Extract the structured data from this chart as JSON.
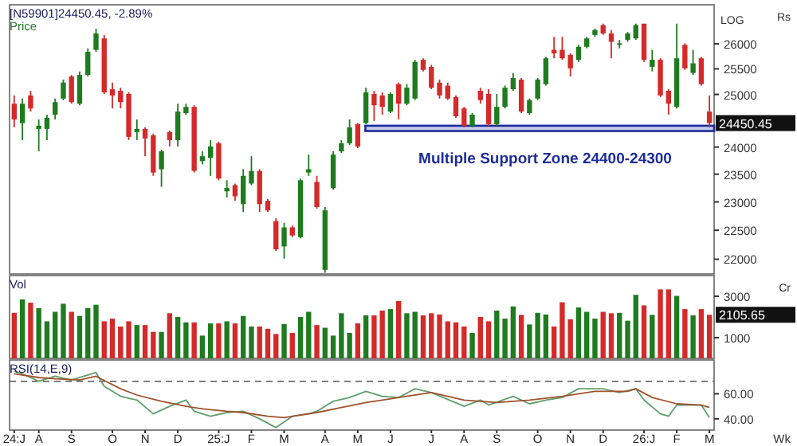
{
  "chart_data": [
    {
      "type": "candlestick",
      "title": "[N59901]24450.45, -2.89%",
      "subtitle": "Price",
      "ylabel": "Rs",
      "log": true,
      "grid": false,
      "tick_labels": "y",
      "annotations": [
        "LOG",
        {
          "text": "24450.45",
          "x": "2026-03-02",
          "y": 24450.45
        }
      ],
      "bands": [
        {
          "axis": "y",
          "from": 24300,
          "to": 24400,
          "label": "Multiple Support Zone 24400-24300",
          "color": "#1c2b9c"
        }
      ],
      "xlim": [
        "2024-07-11",
        "2026-03-06"
      ],
      "ylim": [
        21750,
        26800
      ],
      "yticks": [
        22000,
        22500,
        23000,
        23500,
        24000,
        25000,
        25500,
        26000
      ],
      "x": [
        "2024-07-15",
        "2024-07-22",
        "2024-07-29",
        "2024-08-05",
        "2024-08-12",
        "2024-08-19",
        "2024-08-26",
        "2024-09-02",
        "2024-09-09",
        "2024-09-16",
        "2024-09-23",
        "2024-09-30",
        "2024-10-07",
        "2024-10-14",
        "2024-10-21",
        "2024-10-28",
        "2024-11-04",
        "2024-11-11",
        "2024-11-18",
        "2024-11-25",
        "2024-12-02",
        "2024-12-09",
        "2024-12-16",
        "2024-12-23",
        "2024-12-30",
        "2025-01-06",
        "2025-01-13",
        "2025-01-20",
        "2025-01-27",
        "2025-02-03",
        "2025-02-10",
        "2025-02-17",
        "2025-02-24",
        "2025-03-03",
        "2025-03-10",
        "2025-03-17",
        "2025-03-24",
        "2025-03-31",
        "2025-04-07",
        "2025-04-14",
        "2025-04-21",
        "2025-04-28",
        "2025-05-05",
        "2025-05-12",
        "2025-05-19",
        "2025-05-26",
        "2025-06-02",
        "2025-06-09",
        "2025-06-16",
        "2025-06-23",
        "2025-06-30",
        "2025-07-07",
        "2025-07-14",
        "2025-07-21",
        "2025-07-28",
        "2025-08-04",
        "2025-08-11",
        "2025-08-18",
        "2025-08-25",
        "2025-09-01",
        "2025-09-08",
        "2025-09-15",
        "2025-09-22",
        "2025-09-29",
        "2025-10-06",
        "2025-10-13",
        "2025-10-20",
        "2025-10-27",
        "2025-11-03",
        "2025-11-10",
        "2025-11-17",
        "2025-11-24",
        "2025-12-01",
        "2025-12-08",
        "2025-12-15",
        "2025-12-22",
        "2025-12-29",
        "2026-01-05",
        "2026-01-12",
        "2026-01-19",
        "2026-01-26",
        "2026-02-02",
        "2026-02-09",
        "2026-02-16",
        "2026-02-23",
        "2026-03-02"
      ],
      "ohlc": [
        [
          24820,
          24980,
          24370,
          24520
        ],
        [
          24450,
          24920,
          24130,
          24820
        ],
        [
          24980,
          25070,
          24670,
          24730
        ],
        [
          24340,
          24520,
          23920,
          24400
        ],
        [
          24340,
          24610,
          24130,
          24550
        ],
        [
          24610,
          24920,
          24520,
          24850
        ],
        [
          24920,
          25290,
          24890,
          25230
        ],
        [
          25350,
          25380,
          24820,
          24850
        ],
        [
          24820,
          25450,
          24790,
          25380
        ],
        [
          25380,
          25910,
          25350,
          25840
        ],
        [
          25880,
          26310,
          25840,
          26210
        ],
        [
          26110,
          26180,
          25010,
          25040
        ],
        [
          25100,
          25230,
          24730,
          24980
        ],
        [
          25070,
          25130,
          24730,
          24850
        ],
        [
          25010,
          25040,
          24130,
          24190
        ],
        [
          24280,
          24520,
          24130,
          24340
        ],
        [
          24340,
          24370,
          23830,
          24160
        ],
        [
          24220,
          24250,
          23470,
          23530
        ],
        [
          23590,
          23950,
          23270,
          23920
        ],
        [
          24280,
          24310,
          24010,
          24130
        ],
        [
          24130,
          24820,
          24010,
          24670
        ],
        [
          24640,
          24820,
          24610,
          24760
        ],
        [
          24760,
          24790,
          23530,
          23560
        ],
        [
          23740,
          23920,
          23680,
          23830
        ],
        [
          23800,
          24130,
          23470,
          24010
        ],
        [
          24070,
          24100,
          23390,
          23420
        ],
        [
          23190,
          23390,
          23080,
          23250
        ],
        [
          23300,
          23330,
          23020,
          23100
        ],
        [
          22960,
          23590,
          22820,
          23470
        ],
        [
          23330,
          23830,
          23300,
          23560
        ],
        [
          23560,
          23590,
          22820,
          22960
        ],
        [
          23020,
          23050,
          22820,
          22850
        ],
        [
          22660,
          22710,
          22140,
          22170
        ],
        [
          22220,
          22630,
          22010,
          22550
        ],
        [
          22550,
          22580,
          22380,
          22410
        ],
        [
          22380,
          23420,
          22360,
          23390
        ],
        [
          23530,
          23860,
          23470,
          23590
        ],
        [
          23360,
          23470,
          22880,
          22910
        ],
        [
          21820,
          22910,
          21770,
          22850
        ],
        [
          23250,
          23920,
          23220,
          23860
        ],
        [
          23920,
          24130,
          23890,
          24070
        ],
        [
          24070,
          24520,
          24040,
          24370
        ],
        [
          24430,
          24450,
          23980,
          24010
        ],
        [
          24450,
          25130,
          24430,
          25040
        ],
        [
          25010,
          25070,
          24490,
          24790
        ],
        [
          24980,
          25040,
          24610,
          24760
        ],
        [
          24670,
          25040,
          24640,
          25010
        ],
        [
          25200,
          25230,
          24520,
          24820
        ],
        [
          24820,
          25200,
          24790,
          25130
        ],
        [
          24920,
          25680,
          24890,
          25640
        ],
        [
          25680,
          25710,
          25450,
          25480
        ],
        [
          25540,
          25580,
          25100,
          25130
        ],
        [
          25230,
          25290,
          24920,
          24980
        ],
        [
          25170,
          25230,
          24890,
          24920
        ],
        [
          24950,
          24980,
          24550,
          24580
        ],
        [
          24730,
          24760,
          24370,
          24400
        ],
        [
          24400,
          24640,
          24370,
          24610
        ],
        [
          25070,
          25130,
          24820,
          24890
        ],
        [
          25010,
          25100,
          24400,
          24430
        ],
        [
          24430,
          25010,
          24400,
          24760
        ],
        [
          24760,
          25170,
          24730,
          25130
        ],
        [
          25100,
          25420,
          25070,
          25320
        ],
        [
          25290,
          25320,
          24640,
          24670
        ],
        [
          24640,
          24920,
          24610,
          24890
        ],
        [
          24920,
          25320,
          24890,
          25290
        ],
        [
          25200,
          25740,
          25170,
          25710
        ],
        [
          25880,
          26140,
          25710,
          25810
        ],
        [
          25880,
          26140,
          25680,
          25710
        ],
        [
          25780,
          25810,
          25350,
          25510
        ],
        [
          25680,
          25980,
          25640,
          25940
        ],
        [
          25940,
          26140,
          25910,
          26110
        ],
        [
          26180,
          26310,
          26140,
          26280
        ],
        [
          26380,
          26410,
          26180,
          26210
        ],
        [
          26210,
          26280,
          25710,
          26040
        ],
        [
          25980,
          26080,
          25910,
          26010
        ],
        [
          26080,
          26240,
          26040,
          26210
        ],
        [
          26110,
          26410,
          26080,
          26380
        ],
        [
          26410,
          26410,
          25640,
          25680
        ],
        [
          25540,
          25880,
          25450,
          25680
        ],
        [
          25680,
          25710,
          24950,
          24980
        ],
        [
          25070,
          25100,
          24610,
          24820
        ],
        [
          24760,
          26410,
          24730,
          25710
        ],
        [
          25980,
          26010,
          25480,
          25510
        ],
        [
          25420,
          25880,
          25380,
          25610
        ],
        [
          25710,
          25740,
          25170,
          25200
        ],
        [
          24670,
          24980,
          24370,
          24450.45
        ]
      ],
      "colors": [
        "#d42a2a",
        "#1e7b1e",
        "#d42a2a",
        "#1e7b1e",
        "#1e7b1e",
        "#1e7b1e",
        "#1e7b1e",
        "#d42a2a",
        "#1e7b1e",
        "#1e7b1e",
        "#1e7b1e",
        "#d42a2a",
        "#d42a2a",
        "#d42a2a",
        "#d42a2a",
        "#1e7b1e",
        "#d42a2a",
        "#d42a2a",
        "#1e7b1e",
        "#d42a2a",
        "#1e7b1e",
        "#1e7b1e",
        "#d42a2a",
        "#1e7b1e",
        "#1e7b1e",
        "#d42a2a",
        "#1e7b1e",
        "#d42a2a",
        "#1e7b1e",
        "#1e7b1e",
        "#d42a2a",
        "#d42a2a",
        "#d42a2a",
        "#1e7b1e",
        "#d42a2a",
        "#1e7b1e",
        "#1e7b1e",
        "#d42a2a",
        "#1e7b1e",
        "#1e7b1e",
        "#1e7b1e",
        "#1e7b1e",
        "#d42a2a",
        "#1e7b1e",
        "#d42a2a",
        "#d42a2a",
        "#1e7b1e",
        "#d42a2a",
        "#1e7b1e",
        "#1e7b1e",
        "#d42a2a",
        "#d42a2a",
        "#d42a2a",
        "#d42a2a",
        "#d42a2a",
        "#d42a2a",
        "#1e7b1e",
        "#d42a2a",
        "#d42a2a",
        "#1e7b1e",
        "#1e7b1e",
        "#1e7b1e",
        "#d42a2a",
        "#1e7b1e",
        "#1e7b1e",
        "#1e7b1e",
        "#d42a2a",
        "#d42a2a",
        "#d42a2a",
        "#1e7b1e",
        "#1e7b1e",
        "#1e7b1e",
        "#d42a2a",
        "#d42a2a",
        "#1e7b1e",
        "#1e7b1e",
        "#1e7b1e",
        "#d42a2a",
        "#1e7b1e",
        "#d42a2a",
        "#d42a2a",
        "#1e7b1e",
        "#d42a2a",
        "#1e7b1e",
        "#d42a2a",
        "#d42a2a"
      ]
    },
    {
      "type": "bar",
      "title": "Vol",
      "ylabel": "Cr",
      "grid": false,
      "tick_labels": "y",
      "annotations": [
        {
          "text": "2105.65",
          "x": "2026-03-02",
          "y": 2105.65
        }
      ],
      "xlim": [
        "2024-07-11",
        "2026-03-06"
      ],
      "ylim": [
        0,
        4000
      ],
      "yticks": [
        1000,
        3000
      ],
      "x": [
        "2024-07-15",
        "2024-07-22",
        "2024-07-29",
        "2024-08-05",
        "2024-08-12",
        "2024-08-19",
        "2024-08-26",
        "2024-09-02",
        "2024-09-09",
        "2024-09-16",
        "2024-09-23",
        "2024-09-30",
        "2024-10-07",
        "2024-10-14",
        "2024-10-21",
        "2024-10-28",
        "2024-11-04",
        "2024-11-11",
        "2024-11-18",
        "2024-11-25",
        "2024-12-02",
        "2024-12-09",
        "2024-12-16",
        "2024-12-23",
        "2024-12-30",
        "2025-01-06",
        "2025-01-13",
        "2025-01-20",
        "2025-01-27",
        "2025-02-03",
        "2025-02-10",
        "2025-02-17",
        "2025-02-24",
        "2025-03-03",
        "2025-03-10",
        "2025-03-17",
        "2025-03-24",
        "2025-03-31",
        "2025-04-07",
        "2025-04-14",
        "2025-04-21",
        "2025-04-28",
        "2025-05-05",
        "2025-05-12",
        "2025-05-19",
        "2025-05-26",
        "2025-06-02",
        "2025-06-09",
        "2025-06-16",
        "2025-06-23",
        "2025-06-30",
        "2025-07-07",
        "2025-07-14",
        "2025-07-21",
        "2025-07-28",
        "2025-08-04",
        "2025-08-11",
        "2025-08-18",
        "2025-08-25",
        "2025-09-01",
        "2025-09-08",
        "2025-09-15",
        "2025-09-22",
        "2025-09-29",
        "2025-10-06",
        "2025-10-13",
        "2025-10-20",
        "2025-10-27",
        "2025-11-03",
        "2025-11-10",
        "2025-11-17",
        "2025-11-24",
        "2025-12-01",
        "2025-12-08",
        "2025-12-15",
        "2025-12-22",
        "2025-12-29",
        "2026-01-05",
        "2026-01-12",
        "2026-01-19",
        "2026-01-26",
        "2026-02-02",
        "2026-02-09",
        "2026-02-16",
        "2026-02-23",
        "2026-03-02"
      ],
      "values": [
        2200,
        2850,
        2690,
        2430,
        1790,
        2250,
        2640,
        2250,
        2050,
        2430,
        2590,
        1790,
        1920,
        1540,
        1790,
        1610,
        1610,
        1280,
        1280,
        2180,
        2000,
        1740,
        1740,
        1100,
        1690,
        1690,
        1790,
        1690,
        2050,
        1540,
        1540,
        1430,
        1180,
        1660,
        1230,
        2000,
        2250,
        1610,
        1480,
        1100,
        2180,
        1230,
        1690,
        2080,
        2080,
        2310,
        2380,
        2770,
        2180,
        2250,
        2080,
        2180,
        2120,
        1790,
        1740,
        1540,
        1230,
        2000,
        1790,
        2310,
        1920,
        2510,
        2100,
        1640,
        2200,
        2120,
        1540,
        2710,
        1890,
        2460,
        2250,
        1920,
        2250,
        2180,
        2200,
        1820,
        3070,
        2560,
        2100,
        3330,
        3330,
        3020,
        2380,
        2080,
        2380,
        2105.65
      ],
      "colors": [
        "#d42a2a",
        "#1e7b1e",
        "#d42a2a",
        "#1e7b1e",
        "#1e7b1e",
        "#1e7b1e",
        "#1e7b1e",
        "#d42a2a",
        "#1e7b1e",
        "#1e7b1e",
        "#1e7b1e",
        "#d42a2a",
        "#d42a2a",
        "#d42a2a",
        "#d42a2a",
        "#1e7b1e",
        "#d42a2a",
        "#d42a2a",
        "#1e7b1e",
        "#d42a2a",
        "#1e7b1e",
        "#1e7b1e",
        "#d42a2a",
        "#1e7b1e",
        "#1e7b1e",
        "#d42a2a",
        "#1e7b1e",
        "#d42a2a",
        "#1e7b1e",
        "#1e7b1e",
        "#d42a2a",
        "#d42a2a",
        "#d42a2a",
        "#1e7b1e",
        "#d42a2a",
        "#1e7b1e",
        "#1e7b1e",
        "#d42a2a",
        "#1e7b1e",
        "#1e7b1e",
        "#1e7b1e",
        "#1e7b1e",
        "#d42a2a",
        "#1e7b1e",
        "#d42a2a",
        "#d42a2a",
        "#1e7b1e",
        "#d42a2a",
        "#1e7b1e",
        "#1e7b1e",
        "#d42a2a",
        "#d42a2a",
        "#d42a2a",
        "#d42a2a",
        "#d42a2a",
        "#d42a2a",
        "#1e7b1e",
        "#d42a2a",
        "#d42a2a",
        "#1e7b1e",
        "#1e7b1e",
        "#1e7b1e",
        "#d42a2a",
        "#1e7b1e",
        "#1e7b1e",
        "#1e7b1e",
        "#d42a2a",
        "#d42a2a",
        "#d42a2a",
        "#1e7b1e",
        "#1e7b1e",
        "#1e7b1e",
        "#d42a2a",
        "#d42a2a",
        "#1e7b1e",
        "#1e7b1e",
        "#1e7b1e",
        "#d42a2a",
        "#1e7b1e",
        "#d42a2a",
        "#d42a2a",
        "#1e7b1e",
        "#d42a2a",
        "#1e7b1e",
        "#d42a2a",
        "#d42a2a"
      ]
    },
    {
      "type": "line",
      "title": "RSI(14,E,9)",
      "xlabel": "Wk",
      "grid": false,
      "marker": "none",
      "line_style": "solid",
      "xlim": [
        "2024-07-11",
        "2026-03-06"
      ],
      "ylim": [
        31,
        87
      ],
      "yticks": [
        {
          "value": 40,
          "label": "40.00"
        },
        {
          "value": 60,
          "label": "60.00"
        }
      ],
      "xticks": [
        {
          "value": "2024-07-15",
          "label": "24:J"
        },
        {
          "value": "2024-08-05",
          "label": "A"
        },
        {
          "value": "2024-09-02",
          "label": "S"
        },
        {
          "value": "2024-10-07",
          "label": "O"
        },
        {
          "value": "2024-11-04",
          "label": "N"
        },
        {
          "value": "2024-12-02",
          "label": "D"
        },
        {
          "value": "2025-01-06",
          "label": "25:J"
        },
        {
          "value": "2025-02-03",
          "label": "F"
        },
        {
          "value": "2025-03-03",
          "label": "M"
        },
        {
          "value": "2025-04-07",
          "label": "A"
        },
        {
          "value": "2025-05-05",
          "label": "M"
        },
        {
          "value": "2025-06-02",
          "label": "J"
        },
        {
          "value": "2025-07-07",
          "label": "J"
        },
        {
          "value": "2025-08-04",
          "label": "A"
        },
        {
          "value": "2025-09-01",
          "label": "S"
        },
        {
          "value": "2025-10-06",
          "label": "O"
        },
        {
          "value": "2025-11-03",
          "label": "N"
        },
        {
          "value": "2025-12-01",
          "label": "D"
        },
        {
          "value": "2026-01-05",
          "label": "26:J"
        },
        {
          "value": "2026-02-02",
          "label": "F"
        },
        {
          "value": "2026-03-02",
          "label": "M"
        }
      ],
      "ref_lines": [
        {
          "axis": "y",
          "value": 70,
          "color": "#555555",
          "line_style": "dashed"
        }
      ],
      "series": [
        {
          "color": "#5f9f6a",
          "x": [
            "2024-07-15",
            "2024-07-22",
            "2024-08-05",
            "2024-08-19",
            "2024-09-02",
            "2024-09-16",
            "2024-09-23",
            "2024-09-30",
            "2024-10-14",
            "2024-10-28",
            "2024-11-11",
            "2024-11-25",
            "2024-12-09",
            "2024-12-16",
            "2024-12-30",
            "2025-01-13",
            "2025-01-27",
            "2025-02-10",
            "2025-02-24",
            "2025-03-10",
            "2025-03-24",
            "2025-03-31",
            "2025-04-14",
            "2025-04-28",
            "2025-05-12",
            "2025-05-26",
            "2025-06-09",
            "2025-06-23",
            "2025-07-07",
            "2025-08-04",
            "2025-08-18",
            "2025-08-25",
            "2025-09-15",
            "2025-09-29",
            "2025-10-13",
            "2025-10-27",
            "2025-11-10",
            "2025-12-01",
            "2025-12-15",
            "2025-12-29",
            "2026-01-05",
            "2026-01-19",
            "2026-01-26",
            "2026-02-02",
            "2026-02-09",
            "2026-02-23",
            "2026-03-02"
          ],
          "values": [
            78,
            76,
            70,
            74,
            71,
            75,
            77,
            66,
            58,
            55,
            44,
            50,
            55,
            46,
            42,
            45,
            46,
            40,
            33,
            42,
            44,
            46,
            54,
            57,
            62,
            58,
            57,
            64,
            61,
            50,
            55,
            51,
            58,
            52,
            55,
            57,
            64,
            64,
            61,
            64,
            55,
            44,
            42,
            51,
            51,
            51,
            41
          ]
        },
        {
          "color": "#a0522d",
          "x": [
            "2024-07-15",
            "2024-08-05",
            "2024-08-19",
            "2024-09-09",
            "2024-09-23",
            "2024-10-14",
            "2024-10-28",
            "2024-11-18",
            "2024-12-09",
            "2024-12-23",
            "2025-01-13",
            "2025-01-27",
            "2025-02-17",
            "2025-03-03",
            "2025-03-17",
            "2025-03-31",
            "2025-04-21",
            "2025-05-12",
            "2025-05-26",
            "2025-06-09",
            "2025-07-07",
            "2025-08-04",
            "2025-09-01",
            "2025-09-29",
            "2025-10-27",
            "2025-11-24",
            "2025-12-22",
            "2025-12-29",
            "2026-01-12",
            "2026-02-02",
            "2026-02-23",
            "2026-03-02"
          ],
          "values": [
            76,
            73,
            72,
            71,
            74,
            64,
            59,
            54,
            50,
            48,
            46,
            45,
            42,
            41,
            43,
            45,
            49,
            53,
            55,
            57,
            61,
            55,
            53,
            55,
            58,
            62,
            62,
            64,
            57,
            52,
            51,
            49
          ]
        }
      ]
    }
  ]
}
